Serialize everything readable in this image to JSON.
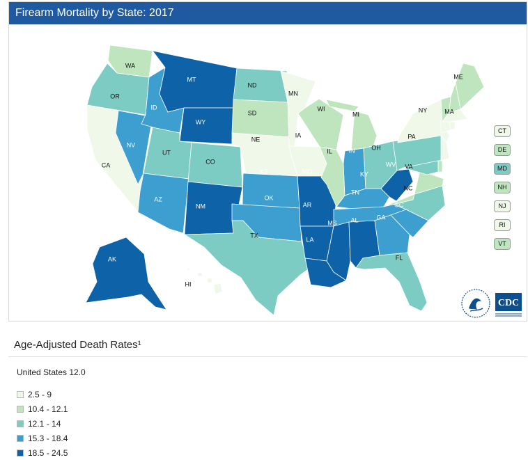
{
  "header": {
    "title": "Firearm Mortality by State: 2017"
  },
  "legend": {
    "title": "Age-Adjusted Death Rates¹",
    "us_rate": "United States 12.0",
    "bins": [
      {
        "label": "2.5 - 9",
        "color": "#f0f8ea"
      },
      {
        "label": "10.4 - 12.1",
        "color": "#bfe5bf"
      },
      {
        "label": "12.1 - 14",
        "color": "#7cccc4"
      },
      {
        "label": "15.3 - 18.4",
        "color": "#3d9fd0"
      },
      {
        "label": "18.5 - 24.5",
        "color": "#0d62a8"
      }
    ]
  },
  "states": [
    {
      "abbr": "WA",
      "bin": 1
    },
    {
      "abbr": "OR",
      "bin": 2
    },
    {
      "abbr": "CA",
      "bin": 0
    },
    {
      "abbr": "NV",
      "bin": 3
    },
    {
      "abbr": "ID",
      "bin": 3
    },
    {
      "abbr": "MT",
      "bin": 4
    },
    {
      "abbr": "WY",
      "bin": 4
    },
    {
      "abbr": "UT",
      "bin": 2
    },
    {
      "abbr": "AZ",
      "bin": 3
    },
    {
      "abbr": "CO",
      "bin": 2
    },
    {
      "abbr": "NM",
      "bin": 4
    },
    {
      "abbr": "ND",
      "bin": 2
    },
    {
      "abbr": "SD",
      "bin": 1
    },
    {
      "abbr": "NE",
      "bin": 0
    },
    {
      "abbr": "KS",
      "bin": 3
    },
    {
      "abbr": "OK",
      "bin": 3
    },
    {
      "abbr": "TX",
      "bin": 2
    },
    {
      "abbr": "MN",
      "bin": 0
    },
    {
      "abbr": "IA",
      "bin": 0
    },
    {
      "abbr": "MO",
      "bin": 4
    },
    {
      "abbr": "AR",
      "bin": 4
    },
    {
      "abbr": "LA",
      "bin": 4
    },
    {
      "abbr": "WI",
      "bin": 1
    },
    {
      "abbr": "IL",
      "bin": 1
    },
    {
      "abbr": "MI",
      "bin": 1
    },
    {
      "abbr": "IN",
      "bin": 3
    },
    {
      "abbr": "OH",
      "bin": 2
    },
    {
      "abbr": "KY",
      "bin": 3
    },
    {
      "abbr": "TN",
      "bin": 3
    },
    {
      "abbr": "MS",
      "bin": 4
    },
    {
      "abbr": "AL",
      "bin": 4
    },
    {
      "abbr": "GA",
      "bin": 3
    },
    {
      "abbr": "FL",
      "bin": 2
    },
    {
      "abbr": "SC",
      "bin": 3
    },
    {
      "abbr": "NC",
      "bin": 2
    },
    {
      "abbr": "VA",
      "bin": 1
    },
    {
      "abbr": "WV",
      "bin": 4
    },
    {
      "abbr": "PA",
      "bin": 2
    },
    {
      "abbr": "NY",
      "bin": 0
    },
    {
      "abbr": "ME",
      "bin": 1
    },
    {
      "abbr": "MA",
      "bin": 0
    },
    {
      "abbr": "VT",
      "bin": 1
    },
    {
      "abbr": "NH",
      "bin": 1
    },
    {
      "abbr": "CT",
      "bin": 0
    },
    {
      "abbr": "RI",
      "bin": 0
    },
    {
      "abbr": "NJ",
      "bin": 0
    },
    {
      "abbr": "DE",
      "bin": 1
    },
    {
      "abbr": "MD",
      "bin": 2
    },
    {
      "abbr": "AK",
      "bin": 4
    },
    {
      "abbr": "HI",
      "bin": 0
    }
  ],
  "side_badges": [
    {
      "abbr": "CT",
      "bin": 0
    },
    {
      "abbr": "DE",
      "bin": 1
    },
    {
      "abbr": "MD",
      "bin": 2
    },
    {
      "abbr": "NH",
      "bin": 1
    },
    {
      "abbr": "NJ",
      "bin": 0
    },
    {
      "abbr": "RI",
      "bin": 0
    },
    {
      "abbr": "VT",
      "bin": 1
    }
  ],
  "logo": {
    "text": "CDC",
    "color": "#0b4f8f"
  }
}
